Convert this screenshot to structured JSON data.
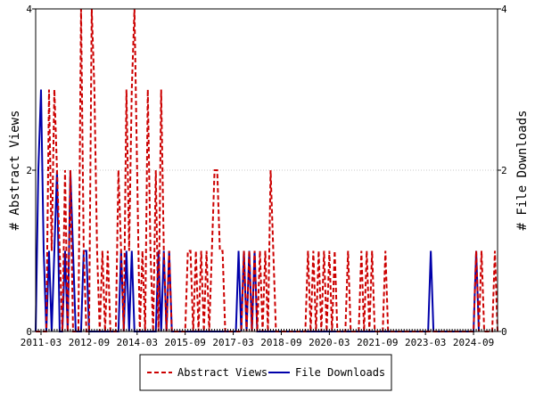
{
  "chart_data": {
    "type": "line",
    "title": "",
    "xlabel": "",
    "ylabel_left": "# Abstract Views",
    "ylabel_right": "# File Downloads",
    "x_start": "2011-01",
    "x_end": "2025-06",
    "x_ticks": [
      "2011-03",
      "2012-09",
      "2014-03",
      "2015-09",
      "2017-03",
      "2018-09",
      "2020-03",
      "2021-09",
      "2023-03",
      "2024-09"
    ],
    "y_left_lim": [
      0,
      4
    ],
    "y_left_ticks": [
      "0",
      "2",
      "4"
    ],
    "y_right_lim": [
      0,
      4
    ],
    "y_right_ticks": [
      "0",
      "2",
      "4"
    ],
    "legend_position": "bottom",
    "colors": {
      "abstract_views": "#cc0000",
      "file_downloads": "#0000aa"
    },
    "series": [
      {
        "name": "Abstract Views",
        "axis": "left",
        "style": "dashed",
        "points": [
          [
            "2011-01",
            0
          ],
          [
            "2011-05",
            0
          ],
          [
            "2011-06",
            3
          ],
          [
            "2011-07",
            1
          ],
          [
            "2011-08",
            3
          ],
          [
            "2011-09",
            2
          ],
          [
            "2011-10",
            1
          ],
          [
            "2011-11",
            0
          ],
          [
            "2011-12",
            2
          ],
          [
            "2012-01",
            0
          ],
          [
            "2012-02",
            2
          ],
          [
            "2012-03",
            0
          ],
          [
            "2012-05",
            0
          ],
          [
            "2012-06",
            4
          ],
          [
            "2012-07",
            1
          ],
          [
            "2012-08",
            0
          ],
          [
            "2012-09",
            0
          ],
          [
            "2012-10",
            4
          ],
          [
            "2012-11",
            3
          ],
          [
            "2012-12",
            1
          ],
          [
            "2013-01",
            0
          ],
          [
            "2013-02",
            1
          ],
          [
            "2013-03",
            0
          ],
          [
            "2013-04",
            1
          ],
          [
            "2013-05",
            0
          ],
          [
            "2013-07",
            0
          ],
          [
            "2013-08",
            2
          ],
          [
            "2013-09",
            1
          ],
          [
            "2013-10",
            0
          ],
          [
            "2013-11",
            3
          ],
          [
            "2013-12",
            1
          ],
          [
            "2014-01",
            3
          ],
          [
            "2014-02",
            4
          ],
          [
            "2014-03",
            2
          ],
          [
            "2014-04",
            0
          ],
          [
            "2014-05",
            1
          ],
          [
            "2014-06",
            0
          ],
          [
            "2014-07",
            3
          ],
          [
            "2014-08",
            1
          ],
          [
            "2014-09",
            0
          ],
          [
            "2014-10",
            2
          ],
          [
            "2014-11",
            0
          ],
          [
            "2014-12",
            3
          ],
          [
            "2015-01",
            1
          ],
          [
            "2015-02",
            0
          ],
          [
            "2015-03",
            1
          ],
          [
            "2015-04",
            0
          ],
          [
            "2015-09",
            0
          ],
          [
            "2015-10",
            1
          ],
          [
            "2015-11",
            1
          ],
          [
            "2015-12",
            0
          ],
          [
            "2016-01",
            1
          ],
          [
            "2016-02",
            0
          ],
          [
            "2016-03",
            1
          ],
          [
            "2016-04",
            0
          ],
          [
            "2016-05",
            1
          ],
          [
            "2016-06",
            0
          ],
          [
            "2016-07",
            1
          ],
          [
            "2016-08",
            2
          ],
          [
            "2016-09",
            2
          ],
          [
            "2016-10",
            1
          ],
          [
            "2016-11",
            1
          ],
          [
            "2016-12",
            0
          ],
          [
            "2017-06",
            0
          ],
          [
            "2017-07",
            1
          ],
          [
            "2017-08",
            0
          ],
          [
            "2017-09",
            1
          ],
          [
            "2017-10",
            0
          ],
          [
            "2017-11",
            1
          ],
          [
            "2017-12",
            0
          ],
          [
            "2018-01",
            1
          ],
          [
            "2018-02",
            0
          ],
          [
            "2018-03",
            1
          ],
          [
            "2018-04",
            0
          ],
          [
            "2018-05",
            2
          ],
          [
            "2018-06",
            1
          ],
          [
            "2018-07",
            0
          ],
          [
            "2019-06",
            0
          ],
          [
            "2019-07",
            1
          ],
          [
            "2019-08",
            0
          ],
          [
            "2019-09",
            1
          ],
          [
            "2019-10",
            0
          ],
          [
            "2019-11",
            1
          ],
          [
            "2019-12",
            0
          ],
          [
            "2020-01",
            1
          ],
          [
            "2020-02",
            0
          ],
          [
            "2020-03",
            1
          ],
          [
            "2020-04",
            0
          ],
          [
            "2020-05",
            1
          ],
          [
            "2020-06",
            0
          ],
          [
            "2020-09",
            0
          ],
          [
            "2020-10",
            1
          ],
          [
            "2020-11",
            0
          ],
          [
            "2021-02",
            0
          ],
          [
            "2021-03",
            1
          ],
          [
            "2021-04",
            0
          ],
          [
            "2021-05",
            1
          ],
          [
            "2021-06",
            0
          ],
          [
            "2021-07",
            1
          ],
          [
            "2021-08",
            0
          ],
          [
            "2021-11",
            0
          ],
          [
            "2021-12",
            1
          ],
          [
            "2022-01",
            0
          ],
          [
            "2024-09",
            0
          ],
          [
            "2024-10",
            1
          ],
          [
            "2024-11",
            0
          ],
          [
            "2024-12",
            1
          ],
          [
            "2025-01",
            0
          ],
          [
            "2025-04",
            0
          ],
          [
            "2025-05",
            1
          ],
          [
            "2025-06",
            0
          ]
        ]
      },
      {
        "name": "File Downloads",
        "axis": "right",
        "style": "solid",
        "points": [
          [
            "2011-01",
            0
          ],
          [
            "2011-02",
            2
          ],
          [
            "2011-03",
            3
          ],
          [
            "2011-04",
            1
          ],
          [
            "2011-05",
            0
          ],
          [
            "2011-06",
            1
          ],
          [
            "2011-07",
            0
          ],
          [
            "2011-08",
            1
          ],
          [
            "2011-09",
            2
          ],
          [
            "2011-10",
            0
          ],
          [
            "2011-11",
            0
          ],
          [
            "2011-12",
            1
          ],
          [
            "2012-01",
            0
          ],
          [
            "2012-02",
            2
          ],
          [
            "2012-03",
            1
          ],
          [
            "2012-04",
            0
          ],
          [
            "2012-06",
            0
          ],
          [
            "2012-07",
            1
          ],
          [
            "2012-08",
            1
          ],
          [
            "2012-09",
            0
          ],
          [
            "2013-08",
            0
          ],
          [
            "2013-09",
            1
          ],
          [
            "2013-10",
            0
          ],
          [
            "2013-11",
            1
          ],
          [
            "2013-12",
            0
          ],
          [
            "2014-01",
            1
          ],
          [
            "2014-02",
            0
          ],
          [
            "2014-10",
            0
          ],
          [
            "2014-11",
            1
          ],
          [
            "2014-12",
            0
          ],
          [
            "2015-01",
            1
          ],
          [
            "2015-02",
            0
          ],
          [
            "2015-03",
            1
          ],
          [
            "2015-04",
            0
          ],
          [
            "2017-04",
            0
          ],
          [
            "2017-05",
            1
          ],
          [
            "2017-06",
            0
          ],
          [
            "2017-07",
            1
          ],
          [
            "2017-08",
            0
          ],
          [
            "2017-09",
            1
          ],
          [
            "2017-10",
            0
          ],
          [
            "2017-11",
            1
          ],
          [
            "2017-12",
            0
          ],
          [
            "2023-04",
            0
          ],
          [
            "2023-05",
            1
          ],
          [
            "2023-06",
            0
          ],
          [
            "2024-09",
            0
          ],
          [
            "2024-10",
            1
          ],
          [
            "2024-11",
            0
          ]
        ]
      }
    ]
  }
}
